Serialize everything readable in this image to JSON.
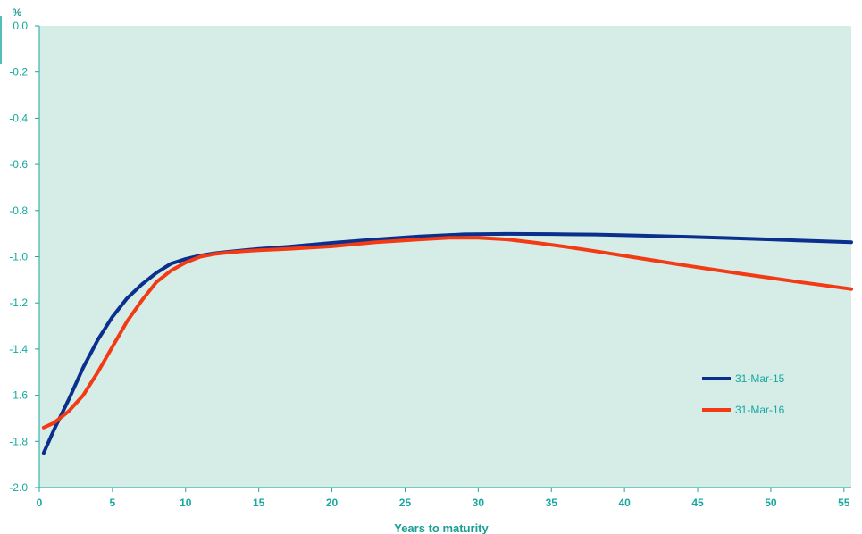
{
  "chart_data": {
    "type": "line",
    "xlabel": "Years to maturity",
    "ylabel": "%",
    "xlim": [
      0,
      55.5
    ],
    "ylim": [
      -2.0,
      0.0
    ],
    "xticks": [
      0,
      5,
      10,
      15,
      20,
      25,
      30,
      35,
      40,
      45,
      50,
      55
    ],
    "yticks": [
      "0.0",
      "-0.2",
      "-0.4",
      "-0.6",
      "-0.8",
      "-1.0",
      "-1.2",
      "-1.4",
      "-1.6",
      "-1.8",
      "-2.0"
    ],
    "grid": false,
    "legend_position": "right",
    "colors": {
      "plot_background": "#d5ece7",
      "axis_text": "#17a8a0",
      "axis_line": "#17a8a0"
    },
    "series": [
      {
        "name": "31-Mar-15",
        "color": "#0a2f8c",
        "points": [
          [
            0.3,
            -1.85
          ],
          [
            1,
            -1.75
          ],
          [
            2,
            -1.62
          ],
          [
            3,
            -1.48
          ],
          [
            4,
            -1.36
          ],
          [
            5,
            -1.26
          ],
          [
            6,
            -1.18
          ],
          [
            7,
            -1.12
          ],
          [
            8,
            -1.07
          ],
          [
            9,
            -1.03
          ],
          [
            10,
            -1.01
          ],
          [
            11,
            -0.995
          ],
          [
            12,
            -0.985
          ],
          [
            13,
            -0.978
          ],
          [
            14,
            -0.972
          ],
          [
            15,
            -0.966
          ],
          [
            17,
            -0.957
          ],
          [
            20,
            -0.94
          ],
          [
            23,
            -0.925
          ],
          [
            26,
            -0.912
          ],
          [
            29,
            -0.903
          ],
          [
            32,
            -0.901
          ],
          [
            35,
            -0.902
          ],
          [
            38,
            -0.904
          ],
          [
            41,
            -0.908
          ],
          [
            44,
            -0.913
          ],
          [
            47,
            -0.919
          ],
          [
            50,
            -0.925
          ],
          [
            53,
            -0.932
          ],
          [
            55.5,
            -0.937
          ]
        ]
      },
      {
        "name": "31-Mar-16",
        "color": "#f23a14",
        "points": [
          [
            0.3,
            -1.74
          ],
          [
            1,
            -1.72
          ],
          [
            2,
            -1.67
          ],
          [
            3,
            -1.6
          ],
          [
            4,
            -1.5
          ],
          [
            5,
            -1.39
          ],
          [
            6,
            -1.28
          ],
          [
            7,
            -1.19
          ],
          [
            8,
            -1.11
          ],
          [
            9,
            -1.06
          ],
          [
            10,
            -1.025
          ],
          [
            11,
            -1.0
          ],
          [
            12,
            -0.988
          ],
          [
            13,
            -0.981
          ],
          [
            14,
            -0.976
          ],
          [
            15,
            -0.972
          ],
          [
            17,
            -0.966
          ],
          [
            20,
            -0.955
          ],
          [
            23,
            -0.937
          ],
          [
            26,
            -0.925
          ],
          [
            28,
            -0.918
          ],
          [
            30,
            -0.918
          ],
          [
            32,
            -0.925
          ],
          [
            34,
            -0.94
          ],
          [
            36,
            -0.957
          ],
          [
            38,
            -0.976
          ],
          [
            40,
            -0.996
          ],
          [
            42,
            -1.016
          ],
          [
            44,
            -1.036
          ],
          [
            46,
            -1.055
          ],
          [
            48,
            -1.074
          ],
          [
            50,
            -1.092
          ],
          [
            52,
            -1.11
          ],
          [
            54,
            -1.127
          ],
          [
            55.5,
            -1.14
          ]
        ]
      }
    ]
  }
}
